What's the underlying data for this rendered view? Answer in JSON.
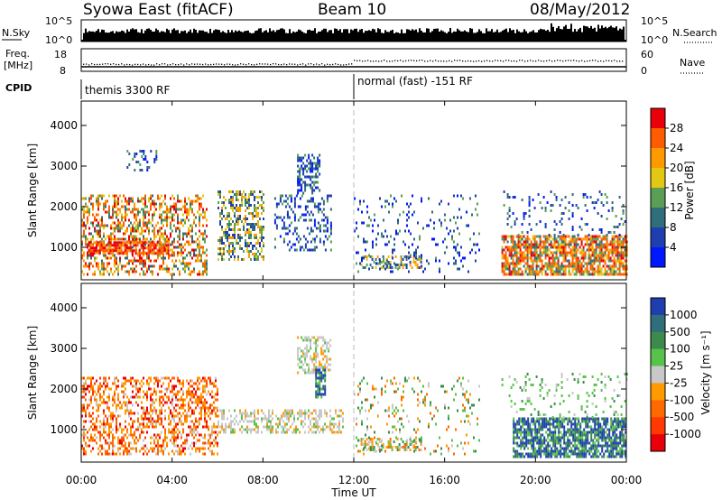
{
  "header": {
    "title": "Syowa East (fitACF)",
    "beam": "Beam 10",
    "date": "08/May/2012"
  },
  "strip_panels": {
    "nsky_label": "N.Sky",
    "nsky_ticks": [
      "10^5",
      "10^0"
    ],
    "nsearch_label": "N.Search",
    "nsearch_ticks": [
      "10^5",
      "10^0"
    ],
    "freq_label_line1": "Freq.",
    "freq_label_line2": "[MHz]",
    "freq_ticks": [
      "18",
      "8"
    ],
    "nave_label": "Nave",
    "nave_ticks": [
      "60",
      "0"
    ],
    "cpid_label": "CPID",
    "cpid_left": "themis 3300 RF",
    "cpid_right": "normal (fast) -151 RF"
  },
  "x_axis": {
    "label": "Time UT",
    "ticks": [
      "00:00",
      "04:00",
      "08:00",
      "12:00",
      "16:00",
      "20:00",
      "00:00"
    ]
  },
  "chart_data": [
    {
      "type": "heatmap",
      "panel": "power",
      "ylabel": "Slant Range [km]",
      "ylim": [
        200,
        4600
      ],
      "yticks": [
        "4000",
        "3000",
        "2000",
        "1000"
      ],
      "xlim_hours": [
        0,
        24
      ],
      "colorbar_label": "Power [dB]",
      "colorbar_ticks": [
        "28",
        "24",
        "20",
        "16",
        "12",
        "8",
        "4"
      ],
      "colorbar_colors": [
        "#e8000b",
        "#ff5b00",
        "#ff9a00",
        "#e3c813",
        "#5b9e55",
        "#2f6e7a",
        "#1f3fb0",
        "#0018ff"
      ],
      "scatter_regions": [
        {
          "t": [
            0.0,
            5.5
          ],
          "range": [
            300,
            2300
          ],
          "level": "mixed",
          "palette": "high"
        },
        {
          "t": [
            0.3,
            3.8
          ],
          "range": [
            850,
            1150
          ],
          "level": "strong",
          "palette": "top"
        },
        {
          "t": [
            6.0,
            8.0
          ],
          "range": [
            700,
            2400
          ],
          "level": "mixed",
          "palette": "mid"
        },
        {
          "t": [
            8.5,
            11.0
          ],
          "range": [
            900,
            2300
          ],
          "level": "weak",
          "palette": "low"
        },
        {
          "t": [
            9.5,
            10.5
          ],
          "range": [
            2300,
            3300
          ],
          "level": "mixed",
          "palette": "low"
        },
        {
          "t": [
            2.0,
            3.3
          ],
          "range": [
            2900,
            3400
          ],
          "level": "weak",
          "palette": "low"
        },
        {
          "t": [
            12.3,
            15.0
          ],
          "range": [
            500,
            800
          ],
          "level": "mixed",
          "palette": "mid"
        },
        {
          "t": [
            12.0,
            17.5
          ],
          "range": [
            400,
            2300
          ],
          "level": "sparse",
          "palette": "low"
        },
        {
          "t": [
            18.5,
            24.0
          ],
          "range": [
            300,
            1300
          ],
          "level": "strong",
          "palette": "high"
        },
        {
          "t": [
            18.5,
            24.0
          ],
          "range": [
            1300,
            2400
          ],
          "level": "sparse",
          "palette": "low"
        }
      ]
    },
    {
      "type": "heatmap",
      "panel": "velocity",
      "ylabel": "Slant Range [km]",
      "ylim": [
        200,
        4600
      ],
      "yticks": [
        "4000",
        "3000",
        "2000",
        "1000"
      ],
      "xlim_hours": [
        0,
        24
      ],
      "colorbar_label": "Velocity [m s⁻¹]",
      "colorbar_ticks": [
        "1000",
        "500",
        "100",
        "25",
        "-25",
        "-100",
        "-500",
        "-1000"
      ],
      "colorbar_colors": [
        "#1f3fb0",
        "#2f6e7a",
        "#3c8a4e",
        "#58c34a",
        "#c8c8c8",
        "#ff9a00",
        "#ff6a00",
        "#ff3a00",
        "#e8000b"
      ],
      "scatter_regions": [
        {
          "t": [
            0.0,
            6.0
          ],
          "range": [
            400,
            2300
          ],
          "level": "mixed",
          "palette": "negative"
        },
        {
          "t": [
            6.0,
            11.5
          ],
          "range": [
            900,
            1500
          ],
          "level": "mixed",
          "palette": "neutral"
        },
        {
          "t": [
            9.5,
            11.0
          ],
          "range": [
            2400,
            3300
          ],
          "level": "mixed",
          "palette": "neutral"
        },
        {
          "t": [
            10.3,
            10.7
          ],
          "range": [
            1800,
            2500
          ],
          "level": "strong",
          "palette": "positive"
        },
        {
          "t": [
            12.3,
            15.0
          ],
          "range": [
            500,
            800
          ],
          "level": "mixed",
          "palette": "mixedv"
        },
        {
          "t": [
            12.0,
            17.5
          ],
          "range": [
            400,
            2300
          ],
          "level": "sparse",
          "palette": "mixedv"
        },
        {
          "t": [
            19.0,
            24.0
          ],
          "range": [
            300,
            1300
          ],
          "level": "strong",
          "palette": "positive"
        },
        {
          "t": [
            18.5,
            24.0
          ],
          "range": [
            1300,
            2400
          ],
          "level": "sparse",
          "palette": "green"
        }
      ]
    }
  ]
}
